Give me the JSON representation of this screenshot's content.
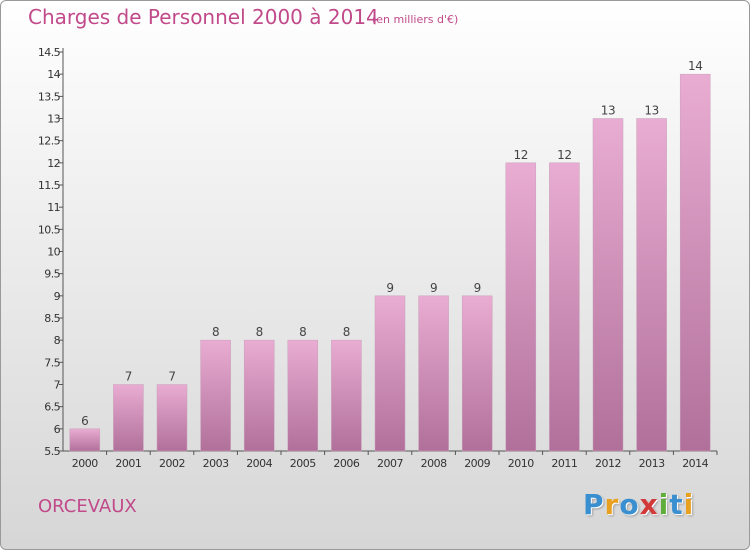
{
  "header": {
    "title": "Charges de Personnel 2000 à 2014",
    "subtitle": "(en milliers d'€)"
  },
  "footer": {
    "commune": "ORCEVAUX",
    "logo": {
      "letters": [
        "P",
        "r",
        "o",
        "x",
        "i",
        "t",
        "i"
      ],
      "colors": [
        "#3a8fd0",
        "#e8a020",
        "#3a8fd0",
        "#d23a3a",
        "#5fae3a",
        "#3a8fd0",
        "#e8a020"
      ]
    }
  },
  "colors": {
    "title": "#c14a8b",
    "bar_top": "#e9acd2",
    "bar_bottom": "#b0709a",
    "axis": "#555555"
  },
  "chart_data": {
    "type": "bar",
    "categories": [
      "2000",
      "2001",
      "2002",
      "2003",
      "2004",
      "2005",
      "2006",
      "2007",
      "2008",
      "2009",
      "2010",
      "2011",
      "2012",
      "2013",
      "2014"
    ],
    "values": [
      6,
      7,
      7,
      8,
      8,
      8,
      8,
      9,
      9,
      9,
      12,
      12,
      13,
      13,
      14
    ],
    "data_labels": [
      "6",
      "7",
      "7",
      "8",
      "8",
      "8",
      "8",
      "9",
      "9",
      "9",
      "12",
      "12",
      "13",
      "13",
      "14"
    ],
    "y_ticks": [
      5.5,
      6,
      6.5,
      7,
      7.5,
      8,
      8.5,
      9,
      9.5,
      10,
      10.5,
      11,
      11.5,
      12,
      12.5,
      13,
      13.5,
      14,
      14.5
    ],
    "ylim": [
      5.5,
      14.5
    ],
    "grid": false
  }
}
